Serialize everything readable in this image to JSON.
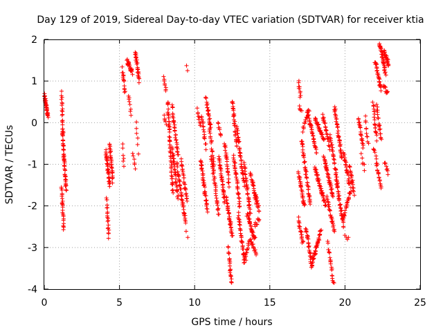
{
  "chart_data": {
    "type": "scatter",
    "title": "Day 129 of 2019, Sidereal Day-to-day VTEC variation (SDTVAR) for receiver ktia",
    "xlabel": "GPS time / hours",
    "ylabel": "SDTVAR / TECUs",
    "xlim": [
      0,
      25
    ],
    "ylim": [
      -4,
      2
    ],
    "xticks": [
      "0",
      "5",
      "10",
      "15",
      "20",
      "25"
    ],
    "yticks": [
      "2",
      "1",
      "0",
      "-1",
      "-2",
      "-3",
      "-4"
    ],
    "grid": true,
    "marker": "+",
    "color": "#ff0000",
    "segments": [
      {
        "x0": 0.0,
        "x1": 0.25,
        "y0": 0.65,
        "y1": 0.15,
        "n": 40
      },
      {
        "x0": 1.15,
        "x1": 1.25,
        "y0": 0.7,
        "y1": -0.3,
        "n": 20
      },
      {
        "x0": 1.2,
        "x1": 1.45,
        "y0": -0.2,
        "y1": -1.6,
        "n": 50
      },
      {
        "x0": 1.15,
        "x1": 1.3,
        "y0": -1.6,
        "y1": -2.55,
        "n": 25
      },
      {
        "x0": 4.1,
        "x1": 4.35,
        "y0": -0.7,
        "y1": -1.5,
        "n": 40
      },
      {
        "x0": 4.15,
        "x1": 4.3,
        "y0": -1.8,
        "y1": -2.75,
        "n": 20
      },
      {
        "x0": 4.35,
        "x1": 4.55,
        "y0": -0.5,
        "y1": -1.4,
        "n": 30
      },
      {
        "x0": 5.2,
        "x1": 5.35,
        "y0": 1.3,
        "y1": 0.75,
        "n": 15
      },
      {
        "x0": 5.2,
        "x1": 5.3,
        "y0": -0.55,
        "y1": -1.0,
        "n": 6
      },
      {
        "x0": 5.5,
        "x1": 5.85,
        "y0": 1.5,
        "y1": 1.2,
        "n": 25
      },
      {
        "x0": 5.6,
        "x1": 5.75,
        "y0": 0.65,
        "y1": 0.2,
        "n": 8
      },
      {
        "x0": 5.9,
        "x1": 6.05,
        "y0": -0.7,
        "y1": -1.1,
        "n": 6
      },
      {
        "x0": 6.05,
        "x1": 6.3,
        "y0": 1.7,
        "y1": 1.0,
        "n": 25
      },
      {
        "x0": 6.1,
        "x1": 6.25,
        "y0": 0.0,
        "y1": -0.7,
        "n": 6
      },
      {
        "x0": 7.95,
        "x1": 8.1,
        "y0": 1.1,
        "y1": 0.75,
        "n": 8
      },
      {
        "x0": 7.95,
        "x1": 8.1,
        "y0": 0.15,
        "y1": 0.0,
        "n": 5
      },
      {
        "x0": 8.2,
        "x1": 8.55,
        "y0": 0.5,
        "y1": -1.65,
        "n": 55
      },
      {
        "x0": 8.5,
        "x1": 8.9,
        "y0": 0.4,
        "y1": -0.8,
        "n": 30
      },
      {
        "x0": 8.5,
        "x1": 8.9,
        "y0": -0.6,
        "y1": -1.8,
        "n": 35
      },
      {
        "x0": 8.8,
        "x1": 9.4,
        "y0": -1.0,
        "y1": -2.4,
        "n": 45
      },
      {
        "x0": 9.1,
        "x1": 9.5,
        "y0": -0.9,
        "y1": -1.9,
        "n": 25
      },
      {
        "x0": 9.45,
        "x1": 9.55,
        "y0": 1.4,
        "y1": 1.3,
        "n": 2
      },
      {
        "x0": 9.45,
        "x1": 9.55,
        "y0": -2.65,
        "y1": -2.8,
        "n": 2
      },
      {
        "x0": 10.2,
        "x1": 10.4,
        "y0": 0.3,
        "y1": -0.1,
        "n": 10
      },
      {
        "x0": 10.45,
        "x1": 10.75,
        "y0": 0.2,
        "y1": -0.6,
        "n": 18
      },
      {
        "x0": 10.4,
        "x1": 10.85,
        "y0": -0.9,
        "y1": -2.1,
        "n": 40
      },
      {
        "x0": 10.75,
        "x1": 11.05,
        "y0": 0.6,
        "y1": -0.1,
        "n": 25
      },
      {
        "x0": 11.0,
        "x1": 11.3,
        "y0": -0.1,
        "y1": -1.1,
        "n": 20
      },
      {
        "x0": 11.1,
        "x1": 11.6,
        "y0": -0.8,
        "y1": -2.2,
        "n": 35
      },
      {
        "x0": 11.55,
        "x1": 11.75,
        "y0": 0.0,
        "y1": -0.3,
        "n": 8
      },
      {
        "x0": 11.6,
        "x1": 12.0,
        "y0": -0.8,
        "y1": -1.9,
        "n": 35
      },
      {
        "x0": 12.0,
        "x1": 12.3,
        "y0": -0.5,
        "y1": -1.5,
        "n": 25
      },
      {
        "x0": 12.1,
        "x1": 12.5,
        "y0": -1.8,
        "y1": -2.7,
        "n": 35
      },
      {
        "x0": 12.25,
        "x1": 12.45,
        "y0": -3.0,
        "y1": -3.9,
        "n": 22
      },
      {
        "x0": 12.5,
        "x1": 12.8,
        "y0": 0.55,
        "y1": -0.6,
        "n": 30
      },
      {
        "x0": 12.6,
        "x1": 13.0,
        "y0": -0.8,
        "y1": -2.0,
        "n": 35
      },
      {
        "x0": 12.8,
        "x1": 13.3,
        "y0": -0.1,
        "y1": -1.5,
        "n": 40
      },
      {
        "x0": 12.9,
        "x1": 13.3,
        "y0": -2.2,
        "y1": -3.3,
        "n": 30
      },
      {
        "x0": 13.3,
        "x1": 13.7,
        "y0": -1.0,
        "y1": -2.2,
        "n": 35
      },
      {
        "x0": 13.3,
        "x1": 13.6,
        "y0": -3.4,
        "y1": -2.9,
        "n": 15
      },
      {
        "x0": 13.5,
        "x1": 14.0,
        "y0": -2.2,
        "y1": -2.8,
        "n": 35
      },
      {
        "x0": 13.7,
        "x1": 14.1,
        "y0": -1.2,
        "y1": -1.9,
        "n": 25
      },
      {
        "x0": 13.7,
        "x1": 14.1,
        "y0": -2.8,
        "y1": -3.2,
        "n": 15
      },
      {
        "x0": 14.0,
        "x1": 14.3,
        "y0": -1.7,
        "y1": -2.1,
        "n": 15
      },
      {
        "x0": 14.0,
        "x1": 14.3,
        "y0": -2.5,
        "y1": -2.3,
        "n": 10
      },
      {
        "x0": 16.9,
        "x1": 17.05,
        "y0": 1.0,
        "y1": 0.6,
        "n": 10
      },
      {
        "x0": 16.95,
        "x1": 17.1,
        "y0": 0.35,
        "y1": 0.25,
        "n": 5
      },
      {
        "x0": 16.9,
        "x1": 17.3,
        "y0": -1.2,
        "y1": -2.0,
        "n": 30
      },
      {
        "x0": 16.9,
        "x1": 17.2,
        "y0": -2.3,
        "y1": -2.9,
        "n": 20
      },
      {
        "x0": 17.1,
        "x1": 17.7,
        "y0": -0.4,
        "y1": -2.0,
        "n": 45
      },
      {
        "x0": 17.2,
        "x1": 17.6,
        "y0": -0.2,
        "y1": 0.3,
        "n": 15
      },
      {
        "x0": 17.5,
        "x1": 18.1,
        "y0": 0.25,
        "y1": -0.7,
        "n": 40
      },
      {
        "x0": 17.4,
        "x1": 17.8,
        "y0": -2.5,
        "y1": -3.5,
        "n": 30
      },
      {
        "x0": 17.8,
        "x1": 18.4,
        "y0": -3.4,
        "y1": -2.6,
        "n": 40
      },
      {
        "x0": 18.0,
        "x1": 18.6,
        "y0": 0.1,
        "y1": -0.4,
        "n": 30
      },
      {
        "x0": 18.0,
        "x1": 18.7,
        "y0": -1.1,
        "y1": -2.0,
        "n": 45
      },
      {
        "x0": 18.5,
        "x1": 19.0,
        "y0": 0.2,
        "y1": -0.6,
        "n": 25
      },
      {
        "x0": 18.6,
        "x1": 19.2,
        "y0": -0.8,
        "y1": -1.8,
        "n": 40
      },
      {
        "x0": 18.8,
        "x1": 19.3,
        "y0": -1.8,
        "y1": -2.6,
        "n": 25
      },
      {
        "x0": 18.85,
        "x1": 19.25,
        "y0": -2.9,
        "y1": -3.9,
        "n": 22
      },
      {
        "x0": 19.0,
        "x1": 19.5,
        "y0": -0.3,
        "y1": -1.4,
        "n": 30
      },
      {
        "x0": 19.3,
        "x1": 19.8,
        "y0": 0.4,
        "y1": -0.9,
        "n": 40
      },
      {
        "x0": 19.4,
        "x1": 19.9,
        "y0": -1.3,
        "y1": -2.5,
        "n": 40
      },
      {
        "x0": 19.9,
        "x1": 20.3,
        "y0": -0.7,
        "y1": -1.5,
        "n": 25
      },
      {
        "x0": 19.9,
        "x1": 20.4,
        "y0": -2.3,
        "y1": -1.6,
        "n": 25
      },
      {
        "x0": 20.0,
        "x1": 20.2,
        "y0": -2.75,
        "y1": -2.8,
        "n": 4
      },
      {
        "x0": 20.3,
        "x1": 20.6,
        "y0": -1.0,
        "y1": -1.7,
        "n": 20
      },
      {
        "x0": 20.9,
        "x1": 21.2,
        "y0": 0.1,
        "y1": -0.6,
        "n": 20
      },
      {
        "x0": 21.1,
        "x1": 21.3,
        "y0": -0.8,
        "y1": -1.1,
        "n": 6
      },
      {
        "x0": 21.35,
        "x1": 21.55,
        "y0": 0.1,
        "y1": -0.5,
        "n": 10
      },
      {
        "x0": 21.85,
        "x1": 22.1,
        "y0": 0.5,
        "y1": -0.4,
        "n": 20
      },
      {
        "x0": 21.9,
        "x1": 22.15,
        "y0": -0.6,
        "y1": -1.0,
        "n": 8
      },
      {
        "x0": 22.0,
        "x1": 22.4,
        "y0": 1.5,
        "y1": 0.8,
        "n": 30
      },
      {
        "x0": 22.1,
        "x1": 22.4,
        "y0": 0.4,
        "y1": -0.4,
        "n": 20
      },
      {
        "x0": 22.1,
        "x1": 22.4,
        "y0": -1.0,
        "y1": -1.6,
        "n": 15
      },
      {
        "x0": 22.3,
        "x1": 22.7,
        "y0": 1.9,
        "y1": 1.2,
        "n": 35
      },
      {
        "x0": 22.6,
        "x1": 22.9,
        "y0": 1.7,
        "y1": 1.4,
        "n": 25
      },
      {
        "x0": 22.55,
        "x1": 22.85,
        "y0": 0.9,
        "y1": 0.7,
        "n": 12
      },
      {
        "x0": 22.65,
        "x1": 22.85,
        "y0": -0.95,
        "y1": -1.2,
        "n": 8
      }
    ]
  }
}
